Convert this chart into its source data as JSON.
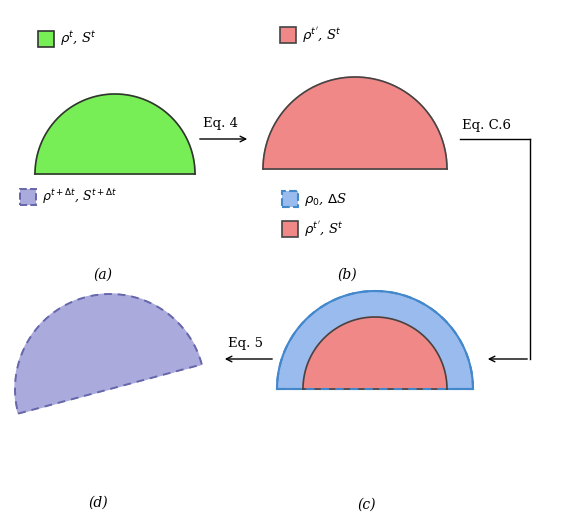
{
  "green_color": "#77ee55",
  "green_edge": "#333333",
  "pink_color": "#f08888",
  "pink_edge": "#444444",
  "blue_color": "#4488cc",
  "blue_fill": "#99bbee",
  "purple_color": "#aaaadd",
  "purple_edge": "#6666aa",
  "bg_color": "#ffffff",
  "label_a": "(a)",
  "label_b": "(b)",
  "label_c": "(c)",
  "label_d": "(d)",
  "legend_a": "$\\rho^t$, S$^t$",
  "legend_b": "$\\rho^{t'}$, S$^t$",
  "legend_c1": "$\\rho_0$, $\\Delta$S",
  "legend_c2": "$\\rho^{t'}$, S$^t$",
  "legend_d": "$\\rho^{t+\\Delta t}$, S$^{t+\\Delta t}$",
  "arrow_ab": "Eq. 4",
  "arrow_bc": "Eq. C.6",
  "arrow_dc": "Eq. 5"
}
